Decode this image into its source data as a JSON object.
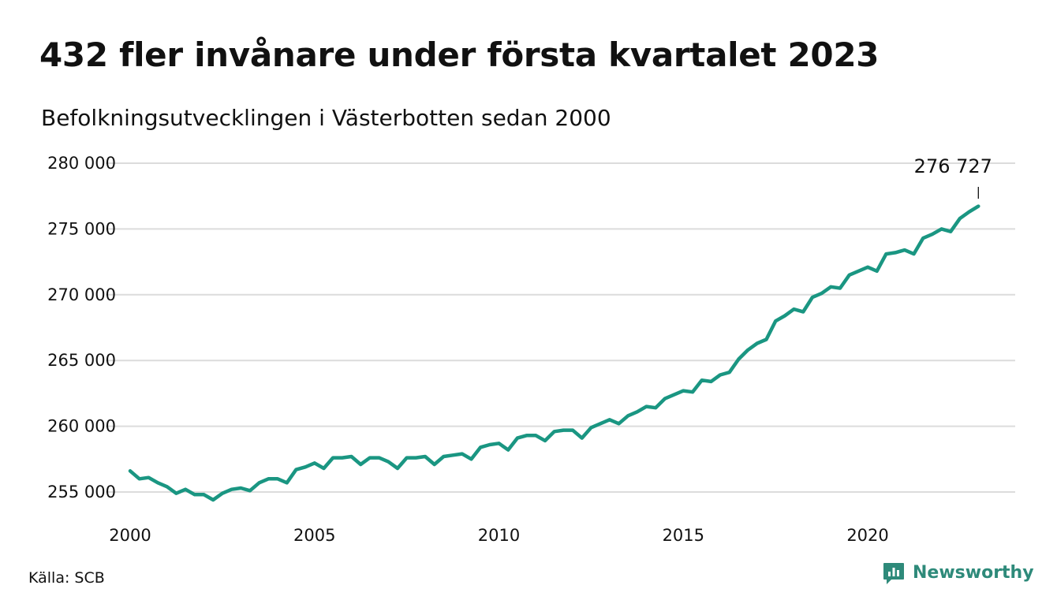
{
  "header": {
    "title": "432 fler invånare under första kvartalet 2023",
    "subtitle": "Befolkningsutvecklingen i Västerbotten sedan 2000"
  },
  "footer": {
    "source": "Källa: SCB",
    "brand_name": "Newsworthy",
    "brand_color": "#2e8a7a"
  },
  "chart_data": {
    "type": "line",
    "title": "432 fler invånare under första kvartalet 2023",
    "subtitle": "Befolkningsutvecklingen i Västerbotten sedan 2000",
    "line_color": "#1a9682",
    "grid": true,
    "xlim": [
      2000.0,
      2023.25
    ],
    "ylim": [
      254000,
      280000
    ],
    "x_ticks": [
      2000,
      2005,
      2010,
      2015,
      2020
    ],
    "x_tick_labels": [
      "2000",
      "2005",
      "2010",
      "2015",
      "2020"
    ],
    "y_ticks": [
      255000,
      260000,
      265000,
      270000,
      275000,
      280000
    ],
    "y_tick_labels": [
      "255 000",
      "260 000",
      "265 000",
      "270 000",
      "275 000",
      "280 000"
    ],
    "end_label": "276 727",
    "series": [
      {
        "x_start": 2000.0,
        "x_step": 0.25,
        "values": [
          256600,
          256000,
          256100,
          255700,
          255400,
          254900,
          255200,
          254800,
          254800,
          254400,
          254900,
          255200,
          255300,
          255100,
          255700,
          256000,
          256000,
          255700,
          256700,
          256900,
          257200,
          256800,
          257600,
          257600,
          257700,
          257100,
          257600,
          257600,
          257300,
          256800,
          257600,
          257600,
          257700,
          257100,
          257700,
          257800,
          257900,
          257500,
          258400,
          258600,
          258700,
          258200,
          259100,
          259300,
          259300,
          258900,
          259600,
          259700,
          259700,
          259100,
          259900,
          260200,
          260500,
          260200,
          260800,
          261100,
          261500,
          261400,
          262100,
          262400,
          262700,
          262600,
          263500,
          263400,
          263900,
          264100,
          265100,
          265800,
          266300,
          266600,
          268000,
          268400,
          268900,
          268700,
          269800,
          270100,
          270600,
          270500,
          271500,
          271800,
          272100,
          271800,
          273100,
          273200,
          273400,
          273100,
          274300,
          274600,
          275000,
          274800,
          275800,
          276300,
          276727
        ]
      }
    ]
  }
}
